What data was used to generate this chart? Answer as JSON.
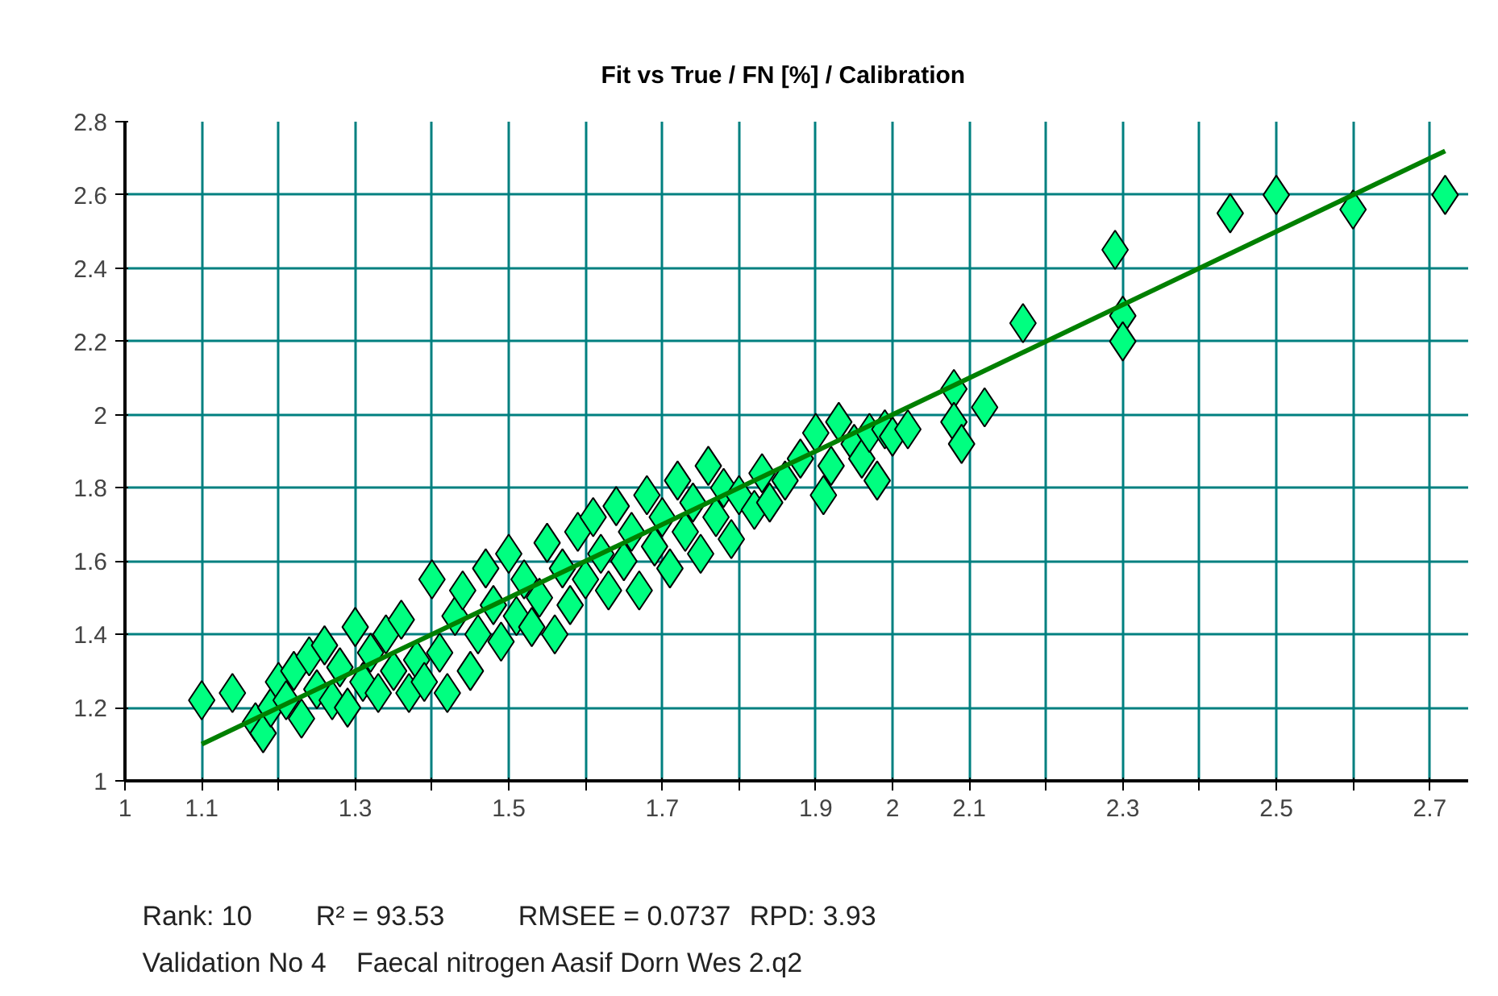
{
  "chart_data": {
    "type": "scatter",
    "title": "Fit vs True  /  FN [%]  /  Calibration",
    "xlim": [
      1,
      2.75
    ],
    "ylim": [
      1,
      2.8
    ],
    "xticks": [
      1,
      1.1,
      {
        "value": 1.2,
        "label": null
      },
      1.3,
      {
        "value": 1.4,
        "label": null
      },
      1.5,
      {
        "value": 1.6,
        "label": null
      },
      1.7,
      {
        "value": 1.8,
        "label": null
      },
      1.9,
      2,
      2.1,
      {
        "value": 2.2,
        "label": null
      },
      2.3,
      {
        "value": 2.4,
        "label": null
      },
      2.5,
      {
        "value": 2.6,
        "label": null
      },
      2.7
    ],
    "yticks": [
      1,
      1.2,
      1.4,
      1.6,
      1.8,
      2,
      2.2,
      2.4,
      2.6,
      2.8
    ],
    "grid": true,
    "marker": "diamond",
    "series": [
      {
        "color": "#00ff80",
        "x": [
          1.1,
          1.14,
          1.17,
          1.18,
          1.19,
          1.2,
          1.21,
          1.22,
          1.23,
          1.24,
          1.25,
          1.26,
          1.27,
          1.28,
          1.29,
          1.3,
          1.31,
          1.32,
          1.33,
          1.34,
          1.35,
          1.36,
          1.37,
          1.38,
          1.39,
          1.4,
          1.41,
          1.42,
          1.43,
          1.44,
          1.45,
          1.46,
          1.47,
          1.48,
          1.49,
          1.5,
          1.51,
          1.52,
          1.53,
          1.54,
          1.55,
          1.56,
          1.57,
          1.58,
          1.59,
          1.6,
          1.61,
          1.62,
          1.63,
          1.64,
          1.65,
          1.66,
          1.67,
          1.68,
          1.69,
          1.7,
          1.71,
          1.72,
          1.73,
          1.74,
          1.75,
          1.76,
          1.77,
          1.78,
          1.79,
          1.8,
          1.82,
          1.83,
          1.84,
          1.86,
          1.88,
          1.9,
          1.91,
          1.92,
          1.93,
          1.95,
          1.96,
          1.97,
          1.98,
          1.99,
          2.0,
          2.02,
          2.08,
          2.08,
          2.09,
          2.12,
          2.17,
          2.29,
          2.3,
          2.3,
          2.44,
          2.5,
          2.6,
          2.72
        ],
        "values": [
          1.22,
          1.24,
          1.16,
          1.13,
          1.2,
          1.27,
          1.22,
          1.3,
          1.17,
          1.34,
          1.25,
          1.37,
          1.22,
          1.31,
          1.2,
          1.42,
          1.27,
          1.35,
          1.24,
          1.4,
          1.3,
          1.44,
          1.24,
          1.33,
          1.27,
          1.55,
          1.35,
          1.24,
          1.45,
          1.52,
          1.3,
          1.4,
          1.58,
          1.48,
          1.38,
          1.62,
          1.45,
          1.55,
          1.42,
          1.5,
          1.65,
          1.4,
          1.58,
          1.48,
          1.68,
          1.55,
          1.72,
          1.62,
          1.52,
          1.75,
          1.6,
          1.68,
          1.52,
          1.78,
          1.64,
          1.72,
          1.58,
          1.82,
          1.68,
          1.76,
          1.62,
          1.86,
          1.72,
          1.8,
          1.66,
          1.78,
          1.74,
          1.84,
          1.76,
          1.82,
          1.88,
          1.95,
          1.78,
          1.86,
          1.98,
          1.92,
          1.88,
          1.95,
          1.82,
          1.96,
          1.94,
          1.96,
          2.07,
          1.98,
          1.92,
          2.02,
          2.25,
          2.45,
          2.27,
          2.2,
          2.55,
          2.6,
          2.56,
          2.6
        ]
      },
      {
        "type": "line",
        "marker": "none",
        "color": "#008000",
        "x": [
          1.1,
          2.72
        ],
        "values": [
          1.1,
          2.72
        ]
      }
    ],
    "annotations": [
      "Rank: 10",
      "R² = 93.53",
      "RMSEE = 0.0737",
      "RPD: 3.93",
      "Validation No 4",
      "Faecal nitrogen Aasif Dorn Wes 2.q2"
    ]
  }
}
